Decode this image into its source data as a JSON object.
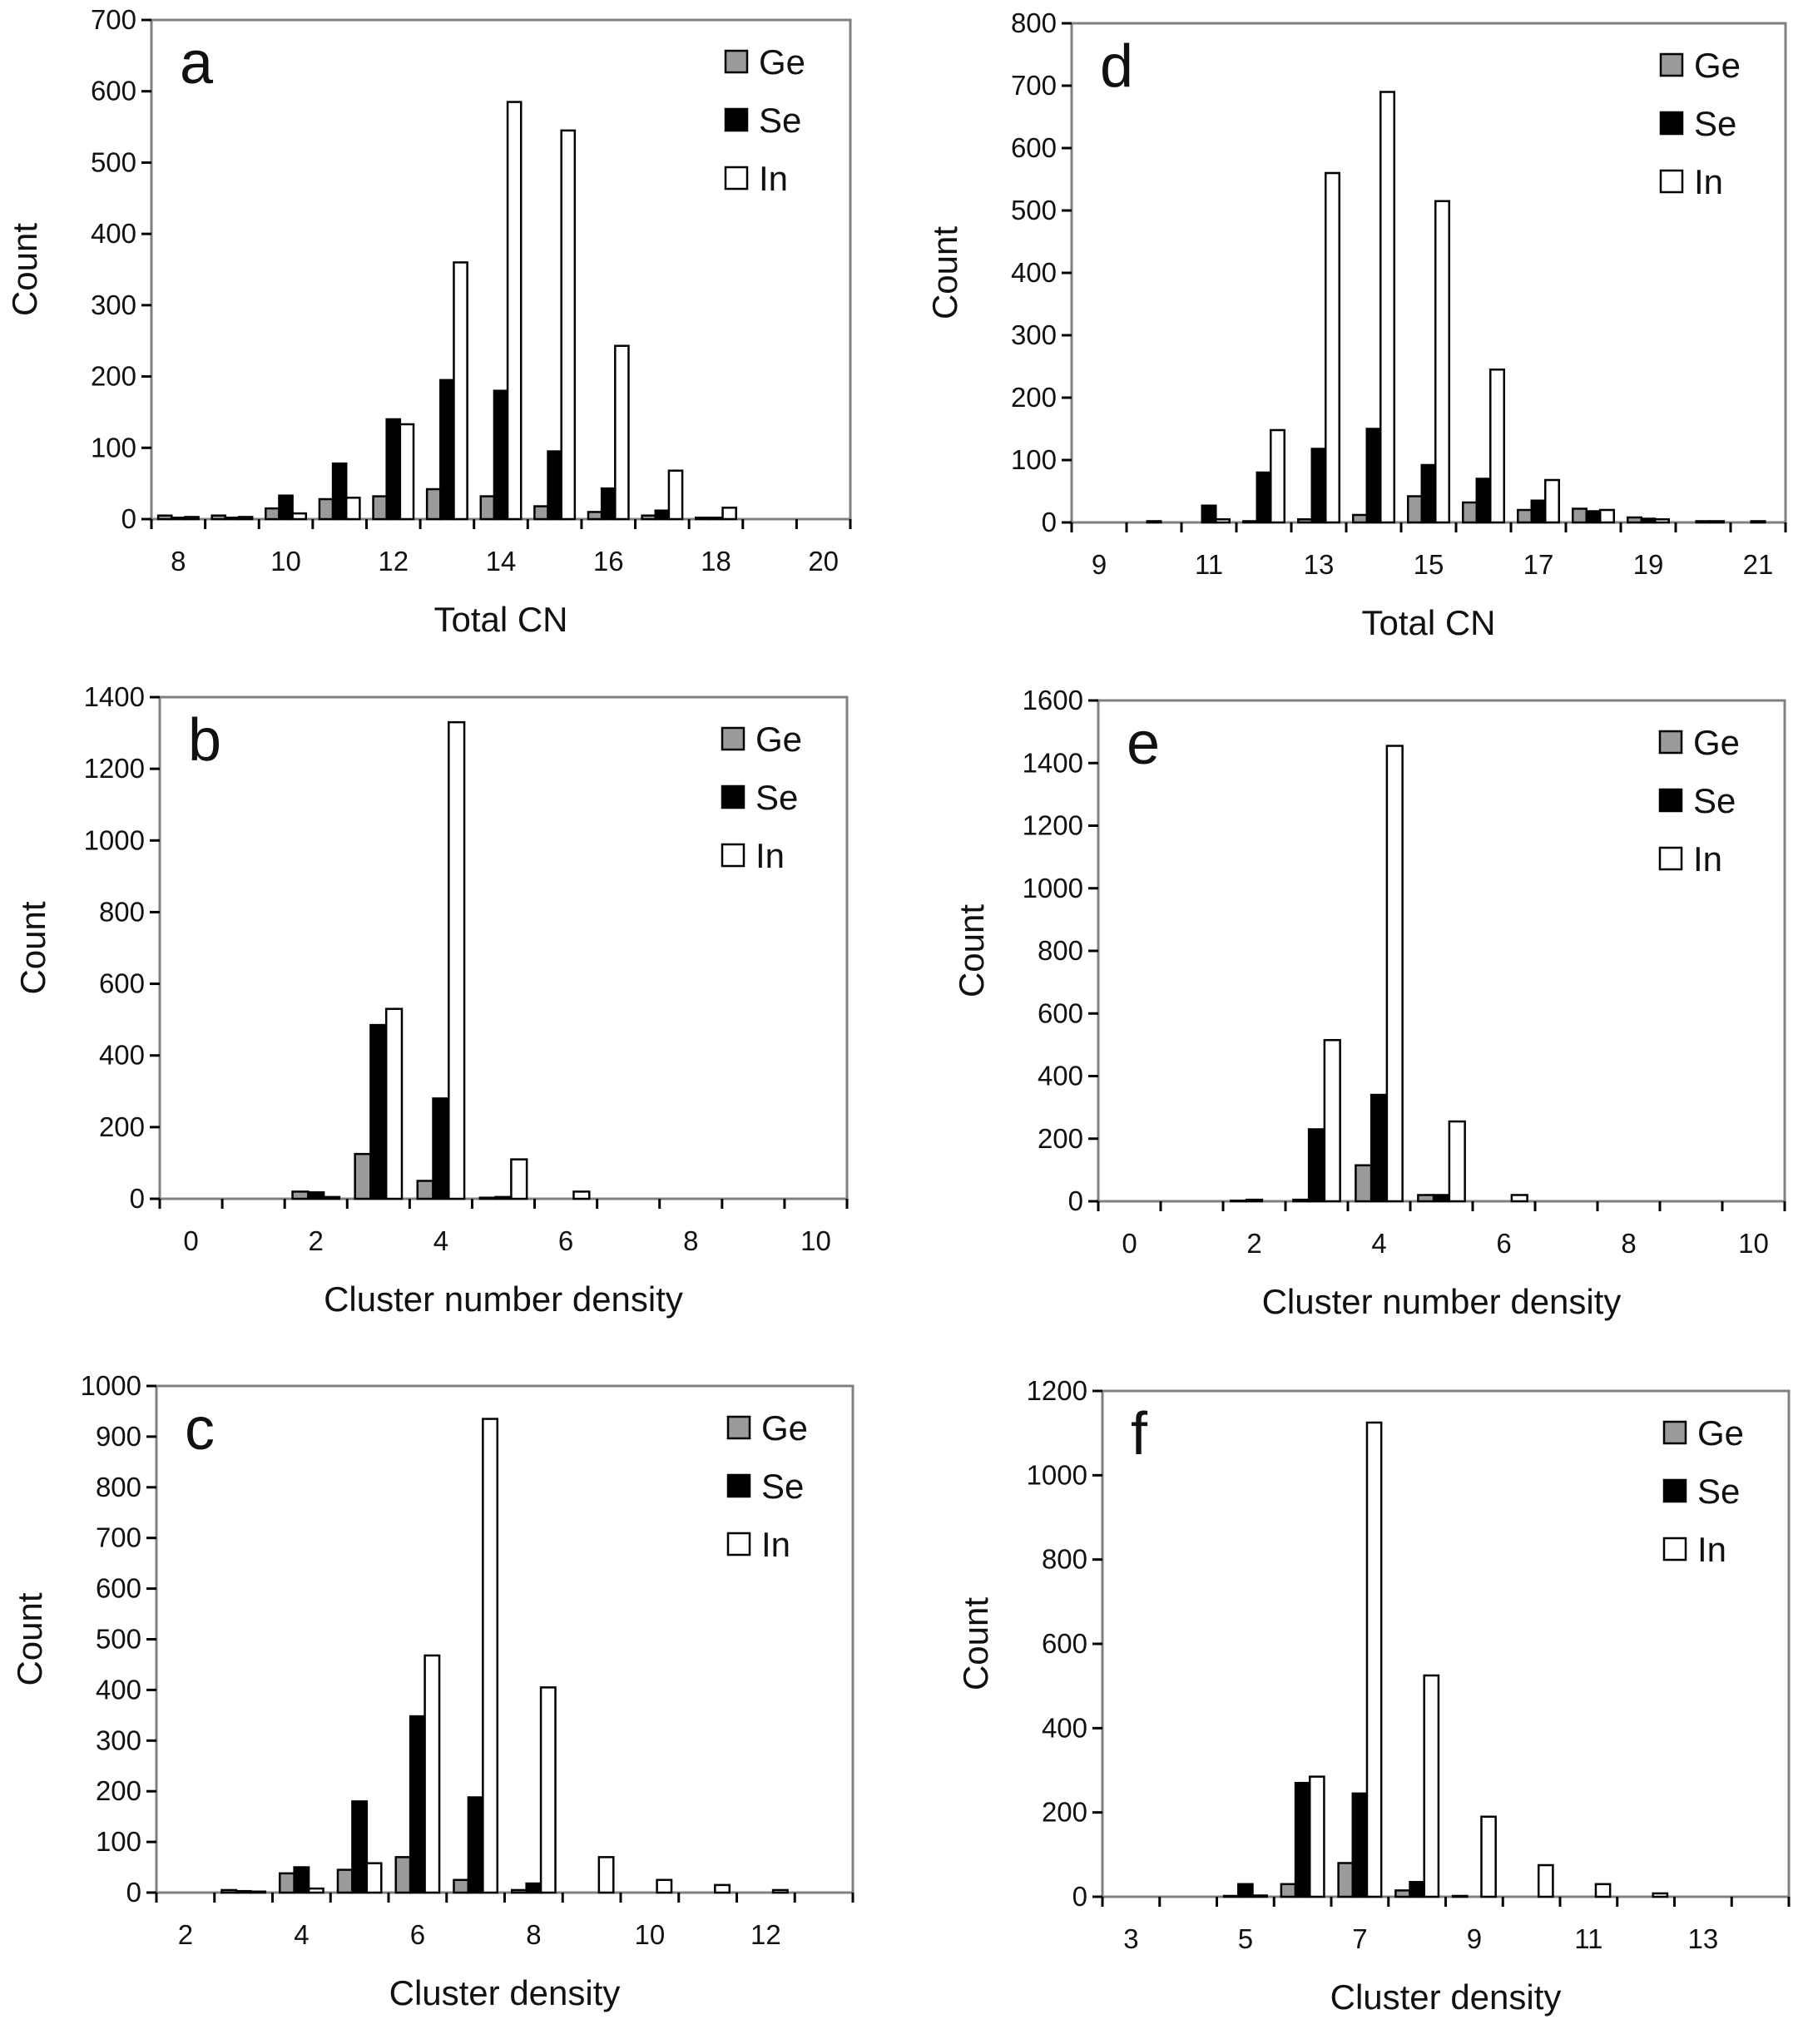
{
  "chart_data": [
    {
      "type": "bar",
      "panel_label": "a",
      "xlabel": "Total CN",
      "ylabel": "Count",
      "ylim": [
        0,
        700
      ],
      "ytick_labels": [
        "0",
        "100",
        "200",
        "300",
        "400",
        "500",
        "600",
        "700"
      ],
      "xlim": [
        7.5,
        20.5
      ],
      "xtick_labels": [
        "8",
        "10",
        "12",
        "14",
        "16",
        "18",
        "20"
      ],
      "legend": [
        "Ge",
        "Se",
        "In"
      ],
      "categories": [
        "8",
        "9",
        "10",
        "11",
        "12",
        "13",
        "14",
        "15",
        "16",
        "17",
        "18",
        "19",
        "20"
      ],
      "series": [
        {
          "name": "Ge",
          "values": [
            5,
            5,
            15,
            28,
            32,
            42,
            32,
            18,
            10,
            5,
            2,
            0,
            0
          ]
        },
        {
          "name": "Se",
          "values": [
            2,
            2,
            33,
            78,
            140,
            195,
            180,
            95,
            43,
            12,
            2,
            0,
            0
          ]
        },
        {
          "name": "In",
          "values": [
            3,
            3,
            8,
            30,
            133,
            360,
            585,
            545,
            243,
            68,
            16,
            0,
            0
          ]
        }
      ]
    },
    {
      "type": "bar",
      "panel_label": "b",
      "xlabel": "Cluster number density",
      "ylabel": "Count",
      "ylim": [
        0,
        1400
      ],
      "ytick_labels": [
        "0",
        "200",
        "400",
        "600",
        "800",
        "1000",
        "1200",
        "1400"
      ],
      "xlim": [
        -0.5,
        10.5
      ],
      "xtick_labels": [
        "0",
        "2",
        "4",
        "6",
        "8",
        "10"
      ],
      "legend": [
        "Ge",
        "Se",
        "In"
      ],
      "categories": [
        "0",
        "1",
        "2",
        "3",
        "4",
        "5",
        "6",
        "7",
        "8",
        "9",
        "10"
      ],
      "series": [
        {
          "name": "Ge",
          "values": [
            0,
            0,
            20,
            125,
            50,
            3,
            0,
            0,
            0,
            0,
            0
          ]
        },
        {
          "name": "Se",
          "values": [
            0,
            0,
            18,
            485,
            280,
            5,
            0,
            0,
            0,
            0,
            0
          ]
        },
        {
          "name": "In",
          "values": [
            0,
            0,
            5,
            530,
            1330,
            110,
            20,
            0,
            0,
            0,
            0
          ]
        }
      ]
    },
    {
      "type": "bar",
      "panel_label": "c",
      "xlabel": "Cluster density",
      "ylabel": "Count",
      "ylim": [
        0,
        1000
      ],
      "ytick_labels": [
        "0",
        "100",
        "200",
        "300",
        "400",
        "500",
        "600",
        "700",
        "800",
        "900",
        "1000"
      ],
      "xlim": [
        1.5,
        13.5
      ],
      "xtick_labels": [
        "2",
        "4",
        "6",
        "8",
        "10",
        "12"
      ],
      "legend": [
        "Ge",
        "Se",
        "In"
      ],
      "categories": [
        "2",
        "3",
        "4",
        "5",
        "6",
        "7",
        "8",
        "9",
        "10",
        "11",
        "12",
        "13"
      ],
      "series": [
        {
          "name": "Ge",
          "values": [
            0,
            5,
            38,
            45,
            70,
            25,
            5,
            0,
            0,
            0,
            0,
            0
          ]
        },
        {
          "name": "Se",
          "values": [
            0,
            3,
            50,
            180,
            348,
            188,
            18,
            0,
            0,
            0,
            0,
            0
          ]
        },
        {
          "name": "In",
          "values": [
            0,
            2,
            8,
            58,
            468,
            935,
            405,
            70,
            25,
            15,
            5,
            0
          ]
        }
      ]
    },
    {
      "type": "bar",
      "panel_label": "d",
      "xlabel": "Total CN",
      "ylabel": "Count",
      "ylim": [
        0,
        800
      ],
      "ytick_labels": [
        "0",
        "100",
        "200",
        "300",
        "400",
        "500",
        "600",
        "700",
        "800"
      ],
      "xlim": [
        8.5,
        21.5
      ],
      "xtick_labels": [
        "9",
        "11",
        "13",
        "15",
        "17",
        "19",
        "21"
      ],
      "legend": [
        "Ge",
        "Se",
        "In"
      ],
      "categories": [
        "9",
        "10",
        "11",
        "12",
        "13",
        "14",
        "15",
        "16",
        "17",
        "18",
        "19",
        "20",
        "21"
      ],
      "series": [
        {
          "name": "Ge",
          "values": [
            0,
            0,
            0,
            2,
            5,
            12,
            42,
            32,
            20,
            22,
            8,
            0,
            0
          ]
        },
        {
          "name": "Se",
          "values": [
            0,
            2,
            27,
            80,
            118,
            150,
            92,
            70,
            35,
            18,
            6,
            2,
            2
          ]
        },
        {
          "name": "In",
          "values": [
            0,
            0,
            5,
            148,
            560,
            690,
            515,
            245,
            68,
            20,
            5,
            2,
            0
          ]
        }
      ]
    },
    {
      "type": "bar",
      "panel_label": "e",
      "xlabel": "Cluster number density",
      "ylabel": "Count",
      "ylim": [
        0,
        1600
      ],
      "ytick_labels": [
        "0",
        "200",
        "400",
        "600",
        "800",
        "1000",
        "1200",
        "1400",
        "1600"
      ],
      "xlim": [
        -0.5,
        10.5
      ],
      "xtick_labels": [
        "0",
        "2",
        "4",
        "6",
        "8",
        "10"
      ],
      "legend": [
        "Ge",
        "Se",
        "In"
      ],
      "categories": [
        "0",
        "1",
        "2",
        "3",
        "4",
        "5",
        "6",
        "7",
        "8",
        "9",
        "10"
      ],
      "series": [
        {
          "name": "Ge",
          "values": [
            0,
            0,
            2,
            5,
            115,
            20,
            0,
            0,
            0,
            0,
            0
          ]
        },
        {
          "name": "Se",
          "values": [
            0,
            0,
            5,
            230,
            340,
            20,
            0,
            0,
            0,
            0,
            0
          ]
        },
        {
          "name": "In",
          "values": [
            0,
            0,
            0,
            515,
            1455,
            255,
            20,
            0,
            0,
            0,
            0
          ]
        }
      ]
    },
    {
      "type": "bar",
      "panel_label": "f",
      "xlabel": "Cluster density",
      "ylabel": "Count",
      "ylim": [
        0,
        1200
      ],
      "ytick_labels": [
        "0",
        "200",
        "400",
        "600",
        "800",
        "1000",
        "1200"
      ],
      "xlim": [
        2.5,
        14.5
      ],
      "xtick_labels": [
        "3",
        "5",
        "7",
        "9",
        "11",
        "13"
      ],
      "legend": [
        "Ge",
        "Se",
        "In"
      ],
      "categories": [
        "3",
        "4",
        "5",
        "6",
        "7",
        "8",
        "9",
        "10",
        "11",
        "12",
        "13",
        "14"
      ],
      "series": [
        {
          "name": "Ge",
          "values": [
            0,
            0,
            2,
            30,
            80,
            15,
            2,
            0,
            0,
            0,
            0,
            0
          ]
        },
        {
          "name": "Se",
          "values": [
            0,
            0,
            30,
            270,
            245,
            35,
            0,
            0,
            0,
            0,
            0,
            0
          ]
        },
        {
          "name": "In",
          "values": [
            0,
            0,
            3,
            285,
            1125,
            525,
            190,
            75,
            30,
            8,
            0,
            0
          ]
        }
      ]
    }
  ],
  "colors": {
    "Ge": "#9a9a9a",
    "Se": "#000000",
    "In": "#ffffff",
    "axis": "#808080",
    "bar_stroke": "#000000"
  }
}
